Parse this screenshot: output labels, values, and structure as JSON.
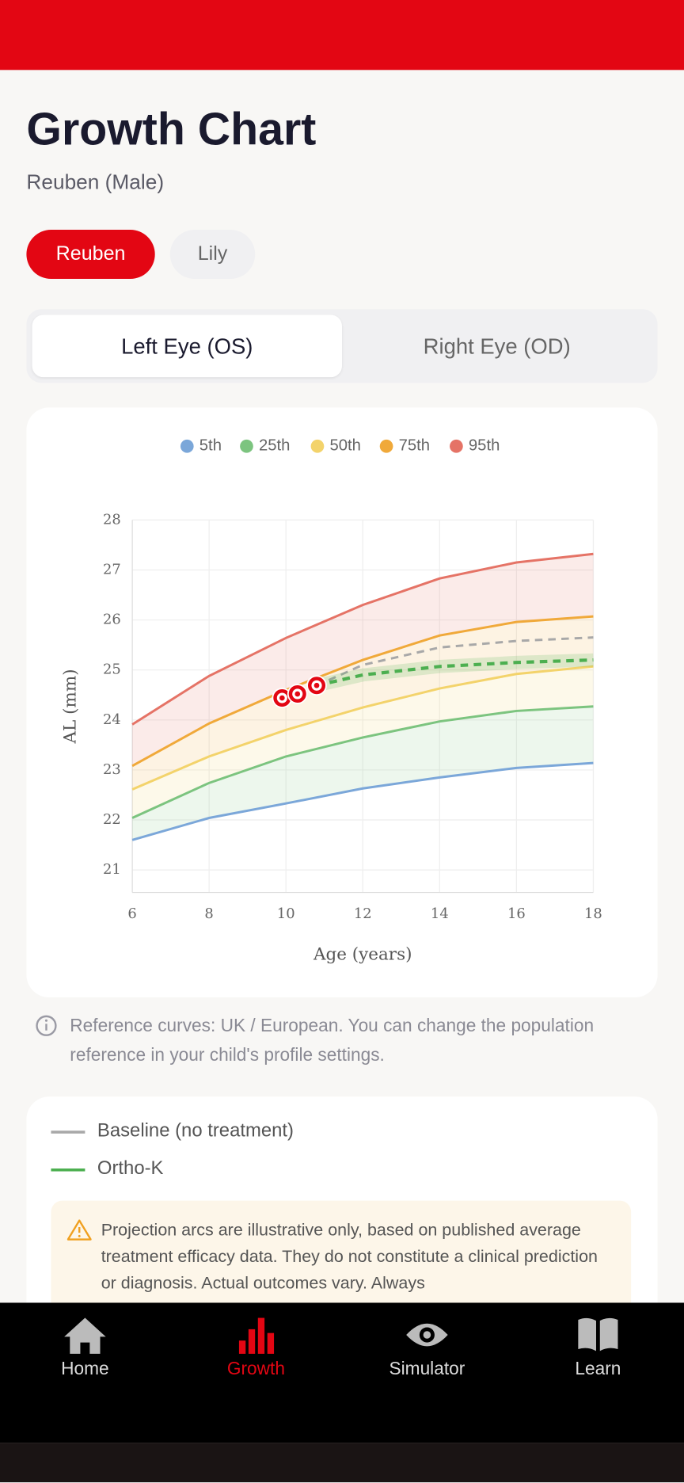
{
  "header": {
    "title": "Growth Chart",
    "subtitle": "Reuben (Male)"
  },
  "children": [
    "Reuben",
    "Lily"
  ],
  "eye_tabs": [
    "Left Eye (OS)",
    "Right Eye (OD)"
  ],
  "chart_data": {
    "type": "line",
    "xlabel": "Age (years)",
    "ylabel": "AL (mm)",
    "x": [
      6,
      8,
      10,
      12,
      14,
      16,
      18
    ],
    "series": [
      {
        "name": "5th",
        "color": "#7ba7d9",
        "values": [
          21.6,
          22.04,
          22.33,
          22.63,
          22.85,
          23.04,
          23.14
        ]
      },
      {
        "name": "25th",
        "color": "#7cc47f",
        "values": [
          22.04,
          22.74,
          23.27,
          23.65,
          23.97,
          24.18,
          24.27
        ]
      },
      {
        "name": "50th",
        "color": "#f3d36b",
        "values": [
          22.61,
          23.27,
          23.8,
          24.25,
          24.63,
          24.92,
          25.07
        ]
      },
      {
        "name": "75th",
        "color": "#f0a93a",
        "values": [
          23.08,
          23.93,
          24.6,
          25.2,
          25.69,
          25.96,
          26.07
        ]
      },
      {
        "name": "95th",
        "color": "#e57366",
        "values": [
          23.91,
          24.88,
          25.64,
          26.3,
          26.83,
          27.15,
          27.32
        ]
      }
    ],
    "measurements": {
      "color": "#e30613",
      "x": [
        9.9,
        10.3,
        10.8
      ],
      "values": [
        24.44,
        24.52,
        24.69
      ]
    },
    "projections": [
      {
        "name": "Baseline (no treatment)",
        "color": "#a8a8a8",
        "x": [
          10.8,
          12,
          14,
          16,
          18
        ],
        "values": [
          24.69,
          25.1,
          25.45,
          25.58,
          25.65
        ]
      },
      {
        "name": "Ortho-K",
        "color": "#4caf50",
        "x": [
          10.8,
          12,
          14,
          16,
          18
        ],
        "values": [
          24.69,
          24.9,
          25.07,
          25.15,
          25.2
        ]
      }
    ],
    "xlim": [
      6,
      18
    ],
    "ylim": [
      20.55,
      28
    ],
    "xticks": [
      6,
      8,
      10,
      12,
      14,
      16,
      18
    ],
    "yticks": [
      21,
      22,
      23,
      24,
      25,
      26,
      27,
      28
    ],
    "grid": true
  },
  "info_note": "Reference curves: UK / European. You can change the population reference in your child's profile settings.",
  "disclaimer": "Projection arcs are illustrative only, based on published average treatment efficacy data. They do not constitute a clinical prediction or diagnosis. Actual outcomes vary. Always",
  "nav": [
    "Home",
    "Growth",
    "Simulator",
    "Learn"
  ]
}
